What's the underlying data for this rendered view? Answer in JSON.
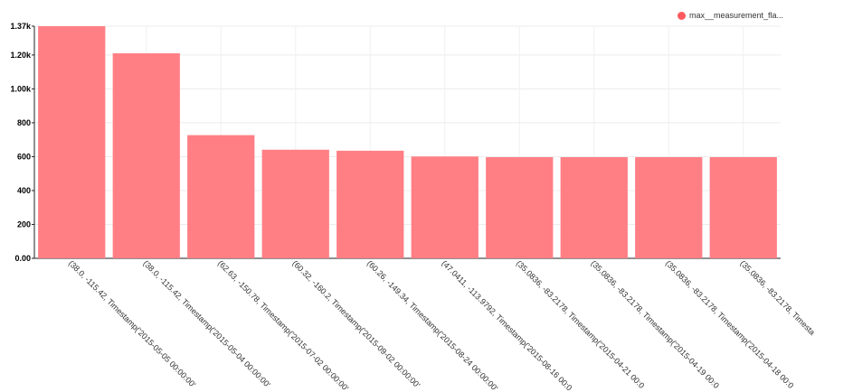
{
  "chart_data": {
    "type": "bar",
    "categories": [
      "(38.0, -115.42, Timestamp('2015-05-05 00:00:00'",
      "(38.0, -115.42, Timestamp('2015-05-04 00:00:00'",
      "(62.63, -150.78, Timestamp('2015-07-02 00:00:00'",
      "(60.32, -160.2, Timestamp('2015-09-02 00:00:00'",
      "(60.26, -149.34, Timestamp('2015-08-24 00:00:00'",
      "(47.0411, -113.9792, Timestamp('2015-08-16 00:0",
      "(35.0836, -83.2178, Timestamp('2015-04-21 00:0",
      "(35.0836, -83.2178, Timestamp('2015-04-19 00:0",
      "(35.0836, -83.2178, Timestamp('2015-04-18 00:0",
      "(35.0836, -83.2178, Timesta"
    ],
    "series": [
      {
        "name": "max__measurement_fla...",
        "values": [
          1370,
          1210,
          727,
          641,
          635,
          601,
          597,
          597,
          597,
          597
        ]
      }
    ],
    "y_ticks": [
      "0.00",
      "200",
      "400",
      "600",
      "800",
      "1.00k",
      "1.20k",
      "1.37k"
    ],
    "y_tick_values": [
      0,
      200,
      400,
      600,
      800,
      1000,
      1200,
      1370
    ],
    "ylim": [
      0,
      1370
    ],
    "grid": true,
    "legend_position": "top-right",
    "bar_color": "#ff7f85",
    "legend_color": "#ff5a5f"
  }
}
